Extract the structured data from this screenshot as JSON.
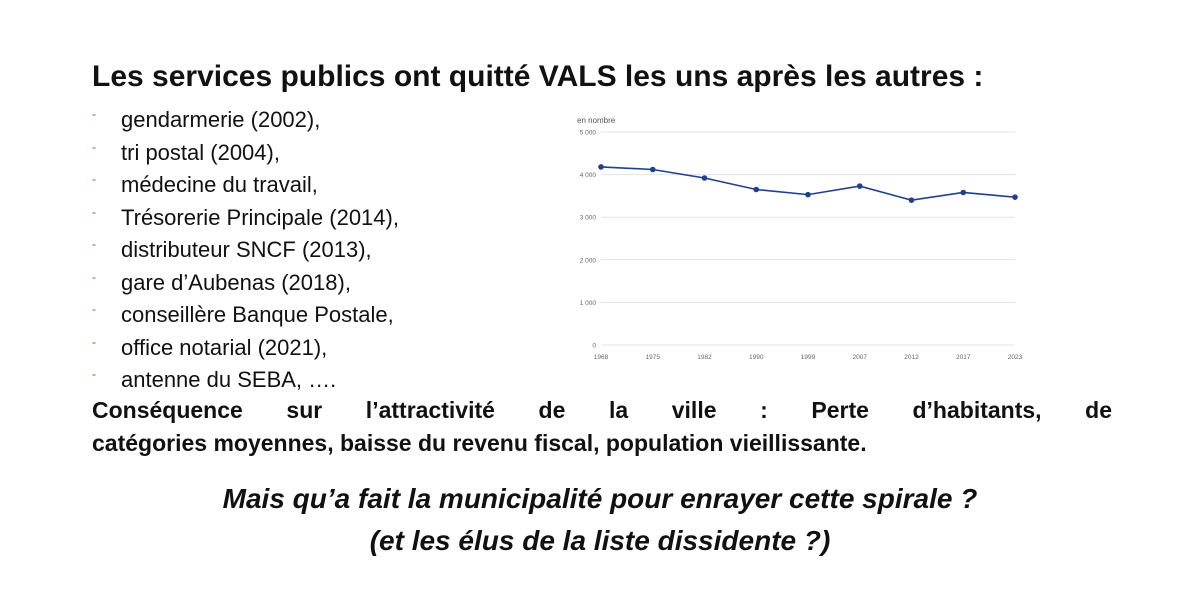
{
  "title": "Les services publics ont quitté VALS les uns après les autres :",
  "bullet_char": "-",
  "services": [
    "gendarmerie (2002),",
    "tri postal (2004),",
    "médecine du travail,",
    "Trésorerie Principale (2014),",
    "distributeur SNCF (2013),",
    "gare d’Aubenas (2018),",
    "conseillère Banque Postale,",
    "office notarial (2021),",
    "antenne du SEBA, …."
  ],
  "consequence": {
    "line1": "Conséquence sur l’attractivité de la ville : Perte d’habitants, de",
    "line2": "catégories moyennes, baisse du revenu fiscal, population vieillissante."
  },
  "question": {
    "line1": "Mais qu’a fait la municipalité pour enrayer cette spirale ?",
    "line2": "(et les élus de la liste dissidente ?)"
  },
  "chart_data": {
    "type": "line",
    "ylabel": "en nombre",
    "x": [
      "1968",
      "1975",
      "1982",
      "1990",
      "1999",
      "2007",
      "2012",
      "2017",
      "2023"
    ],
    "values": [
      4180,
      4120,
      3920,
      3650,
      3530,
      3730,
      3400,
      3580,
      3470
    ],
    "ylim": [
      0,
      5000
    ],
    "yticks": [
      0,
      1000,
      2000,
      3000,
      4000,
      5000
    ],
    "ytick_labels": [
      "0",
      "1 000",
      "2 000",
      "3 000",
      "4 000",
      "5 000"
    ],
    "grid": true,
    "line_color": "#1f3f8f"
  }
}
